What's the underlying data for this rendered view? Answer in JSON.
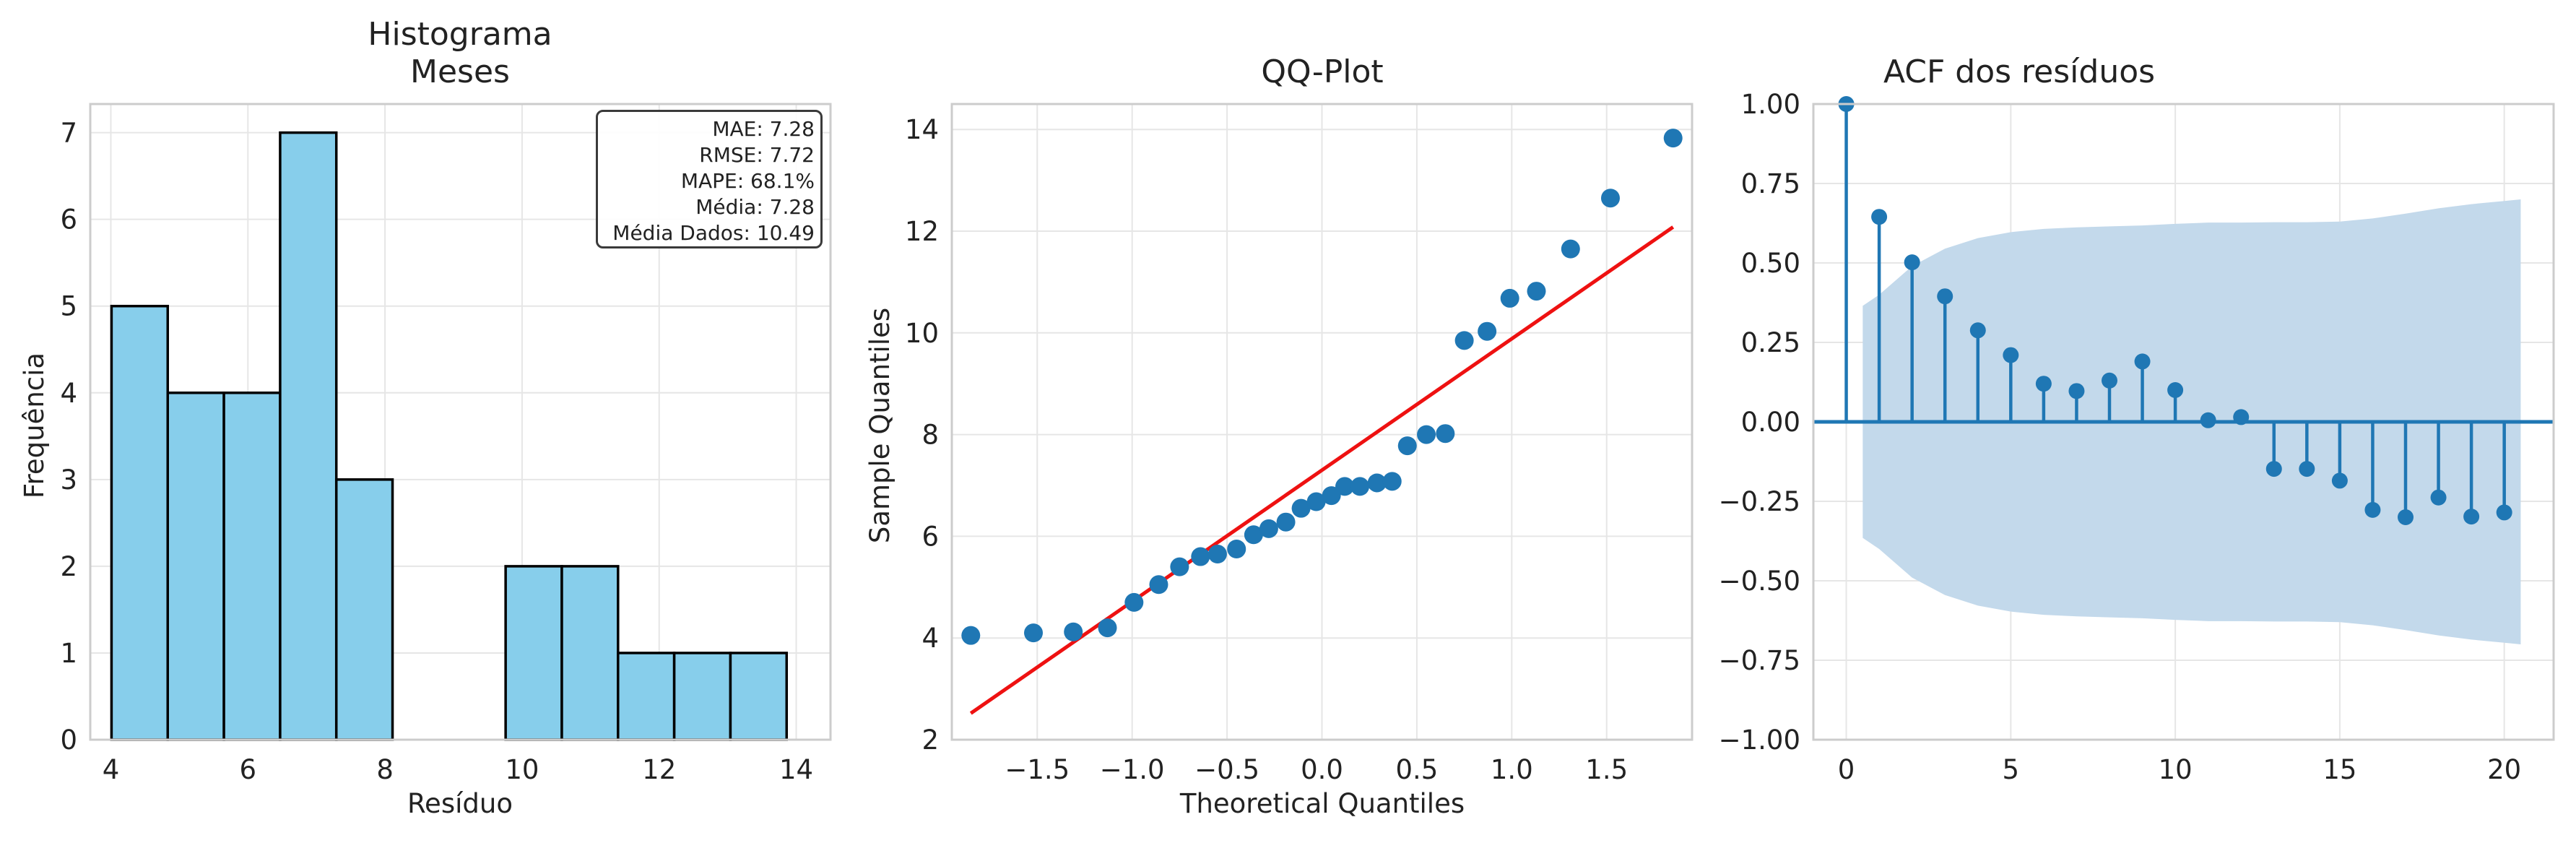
{
  "chart_data": [
    {
      "type": "bar",
      "title": [
        "Histograma",
        "Meses"
      ],
      "xlabel": "Resíduo",
      "ylabel": "Frequência",
      "xlim": [
        3.7,
        14.5
      ],
      "ylim": [
        0,
        7.33
      ],
      "xticks": [
        4,
        6,
        8,
        10,
        12,
        14
      ],
      "yticks": [
        0,
        1,
        2,
        3,
        4,
        5,
        6,
        7
      ],
      "bins": [
        {
          "x0": 4.01,
          "x1": 4.83,
          "count": 5
        },
        {
          "x0": 4.83,
          "x1": 5.65,
          "count": 4
        },
        {
          "x0": 5.65,
          "x1": 6.47,
          "count": 4
        },
        {
          "x0": 6.47,
          "x1": 7.29,
          "count": 7
        },
        {
          "x0": 7.29,
          "x1": 8.11,
          "count": 3
        },
        {
          "x0": 8.11,
          "x1": 8.93,
          "count": 0
        },
        {
          "x0": 8.93,
          "x1": 9.76,
          "count": 0
        },
        {
          "x0": 9.76,
          "x1": 10.58,
          "count": 2
        },
        {
          "x0": 10.58,
          "x1": 11.4,
          "count": 2
        },
        {
          "x0": 11.4,
          "x1": 12.22,
          "count": 1
        },
        {
          "x0": 12.22,
          "x1": 13.04,
          "count": 1
        },
        {
          "x0": 13.04,
          "x1": 13.86,
          "count": 1
        }
      ],
      "bar_color": "#87ceeb",
      "edge_color": "#000000",
      "annotation": [
        "MAE: 7.28",
        "RMSE: 7.72",
        "MAPE: 68.1%",
        "Média: 7.28",
        "Média Dados: 10.49"
      ],
      "annotation_placement": "top-right",
      "grid": true
    },
    {
      "type": "scatter",
      "title": "QQ-Plot",
      "xlabel": "Theoretical Quantiles",
      "ylabel": "Sample Quantiles",
      "xlim": [
        -1.95,
        1.95
      ],
      "ylim": [
        2,
        14.5
      ],
      "xticks": [
        -1.5,
        -1.0,
        -0.5,
        0.0,
        0.5,
        1.0,
        1.5
      ],
      "yticks": [
        2,
        4,
        6,
        8,
        10,
        12,
        14
      ],
      "points": [
        [
          -1.85,
          4.05
        ],
        [
          -1.52,
          4.1
        ],
        [
          -1.31,
          4.12
        ],
        [
          -1.13,
          4.2
        ],
        [
          -0.99,
          4.7
        ],
        [
          -0.86,
          5.05
        ],
        [
          -0.75,
          5.4
        ],
        [
          -0.64,
          5.6
        ],
        [
          -0.55,
          5.65
        ],
        [
          -0.45,
          5.75
        ],
        [
          -0.36,
          6.03
        ],
        [
          -0.28,
          6.15
        ],
        [
          -0.19,
          6.28
        ],
        [
          -0.11,
          6.55
        ],
        [
          -0.03,
          6.68
        ],
        [
          0.05,
          6.8
        ],
        [
          0.12,
          6.98
        ],
        [
          0.2,
          6.98
        ],
        [
          0.29,
          7.05
        ],
        [
          0.37,
          7.08
        ],
        [
          0.45,
          7.78
        ],
        [
          0.55,
          8.0
        ],
        [
          0.65,
          8.02
        ],
        [
          0.75,
          9.85
        ],
        [
          0.87,
          10.03
        ],
        [
          0.99,
          10.68
        ],
        [
          1.13,
          10.82
        ],
        [
          1.31,
          11.65
        ],
        [
          1.52,
          12.65
        ],
        [
          1.85,
          13.83
        ]
      ],
      "reference_line": {
        "x": [
          -1.85,
          1.85
        ],
        "y": [
          2.52,
          12.08
        ],
        "color": "#ee1111"
      },
      "point_color": "#1f77b4",
      "grid": true
    },
    {
      "type": "stem",
      "title": "ACF dos resíduos",
      "xlim": [
        -1,
        21.5
      ],
      "ylim": [
        -1.0,
        1.0
      ],
      "xticks": [
        0,
        5,
        10,
        15,
        20
      ],
      "yticks": [
        -1.0,
        -0.75,
        -0.5,
        -0.25,
        0.0,
        0.25,
        0.5,
        0.75,
        1.0
      ],
      "lags": [
        0,
        1,
        2,
        3,
        4,
        5,
        6,
        7,
        8,
        9,
        10,
        11,
        12,
        13,
        14,
        15,
        16,
        17,
        18,
        19,
        20
      ],
      "values": [
        1.0,
        0.645,
        0.502,
        0.395,
        0.288,
        0.21,
        0.12,
        0.097,
        0.13,
        0.19,
        0.1,
        0.005,
        0.015,
        -0.148,
        -0.148,
        -0.185,
        -0.277,
        -0.3,
        -0.238,
        -0.298,
        -0.285
      ],
      "confidence_band": {
        "lags": [
          0.5,
          1,
          2,
          3,
          4,
          5,
          6,
          7,
          8,
          9,
          10,
          11,
          12,
          13,
          14,
          15,
          16,
          17,
          18,
          19,
          20,
          20.5
        ],
        "upper": [
          0.365,
          0.4,
          0.49,
          0.545,
          0.578,
          0.597,
          0.607,
          0.612,
          0.615,
          0.618,
          0.623,
          0.627,
          0.627,
          0.628,
          0.628,
          0.63,
          0.64,
          0.655,
          0.672,
          0.685,
          0.695,
          0.7
        ]
      },
      "stem_color": "#1f77b4",
      "band_color": "#c3d9eb",
      "grid": true
    }
  ]
}
